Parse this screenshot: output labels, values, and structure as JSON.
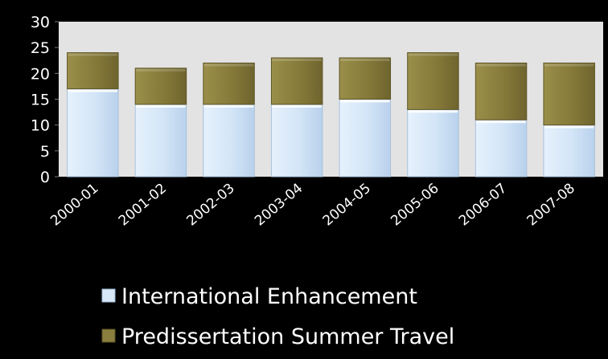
{
  "chart_data": {
    "type": "bar",
    "stacked": true,
    "categories": [
      "2000-01",
      "2001-02",
      "2002-03",
      "2003-04",
      "2004-05",
      "2005-06",
      "2006-07",
      "2007-08"
    ],
    "series": [
      {
        "name": "International Enhancement",
        "values": [
          17,
          14,
          14,
          14,
          15,
          13,
          11,
          10
        ],
        "color": "#d8e8f8"
      },
      {
        "name": "Predissertation Summer Travel",
        "values": [
          7,
          7,
          8,
          9,
          8,
          11,
          11,
          12
        ],
        "color": "#8a7f3e"
      }
    ],
    "ylim": [
      0,
      30
    ],
    "yticks": [
      0,
      5,
      10,
      15,
      20,
      25,
      30
    ],
    "grid": false,
    "legend_position": "bottom",
    "plot_background": "#e3e3e3",
    "page_background": "#000000"
  }
}
